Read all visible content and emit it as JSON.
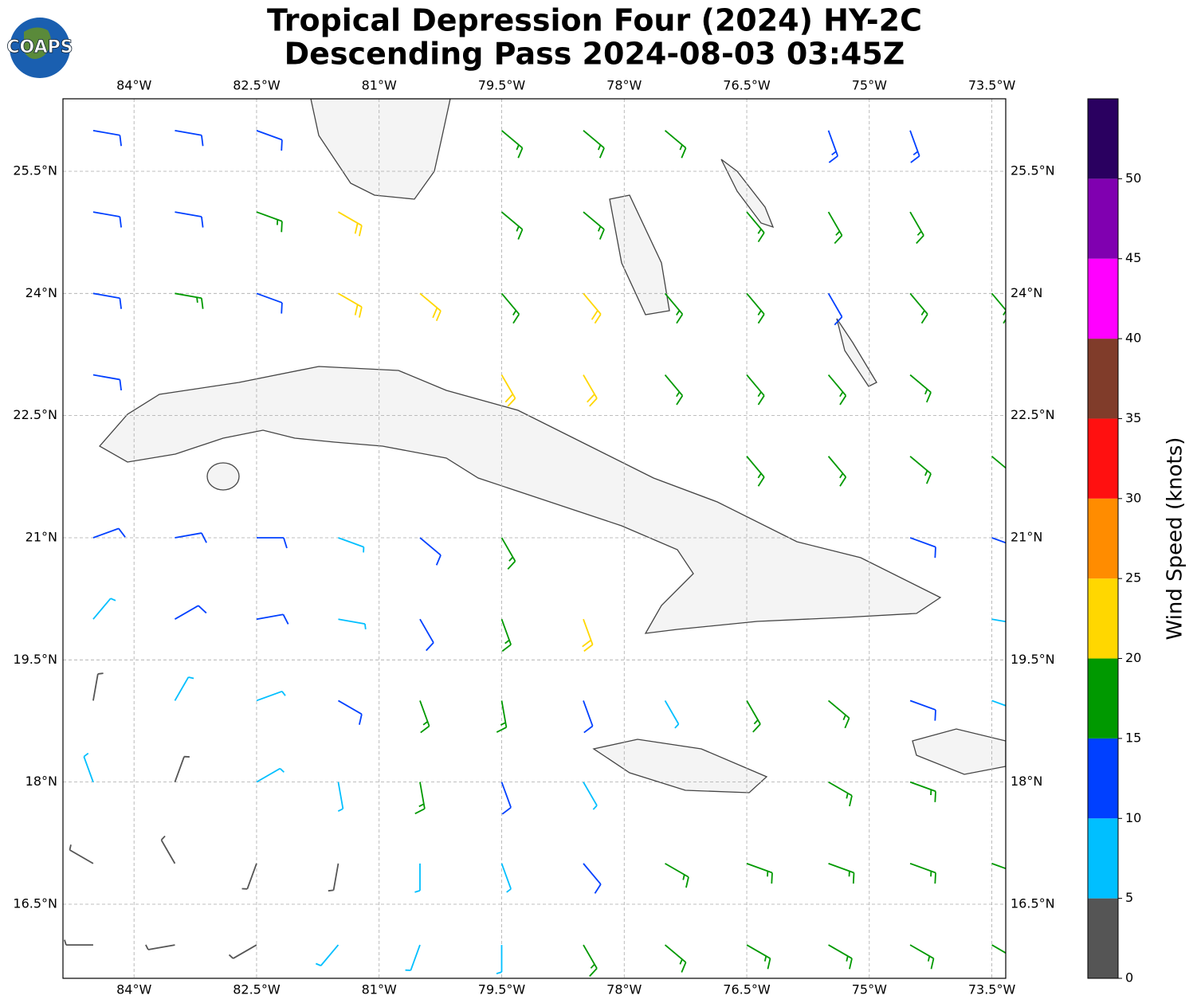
{
  "map": {
    "title": [
      "Tropical Depression Four (2024) HY-2C",
      "Descending Pass 2024-08-03 03:45Z"
    ],
    "logo": "COAPS",
    "xlim": [
      -84.87,
      -73.33
    ],
    "ylim": [
      15.59,
      26.39
    ],
    "xticks": [
      {
        "value": -84,
        "label": "84°W"
      },
      {
        "value": -82.5,
        "label": "82.5°W"
      },
      {
        "value": -81,
        "label": "81°W"
      },
      {
        "value": -79.5,
        "label": "79.5°W"
      },
      {
        "value": -78,
        "label": "78°W"
      },
      {
        "value": -76.5,
        "label": "76.5°W"
      },
      {
        "value": -75,
        "label": "75°W"
      },
      {
        "value": -73.5,
        "label": "73.5°W"
      }
    ],
    "yticks": [
      {
        "value": 16.5,
        "label": "16.5°N"
      },
      {
        "value": 18,
        "label": "18°N"
      },
      {
        "value": 19.5,
        "label": "19.5°N"
      },
      {
        "value": 21,
        "label": "21°N"
      },
      {
        "value": 22.5,
        "label": "22.5°N"
      },
      {
        "value": 24,
        "label": "24°N"
      },
      {
        "value": 25.5,
        "label": "25.5°N"
      }
    ],
    "grid": true,
    "winds": {
      "lons": [
        -84.5,
        -83.5,
        -82.5,
        -81.5,
        -80.5,
        -79.5,
        -78.5,
        -77.5,
        -76.5,
        -75.5,
        -74.5,
        -73.5
      ],
      "lats": [
        16,
        17,
        18,
        19,
        20,
        21,
        22,
        23,
        24,
        25,
        26
      ],
      "speed": [
        [
          3,
          3,
          4,
          7,
          7,
          7,
          17,
          17,
          17,
          17,
          17,
          17
        ],
        [
          3,
          3,
          4,
          3,
          7,
          7,
          12,
          17,
          17,
          17,
          17,
          17
        ],
        [
          7,
          4,
          7,
          7,
          17,
          12,
          7,
          null,
          null,
          17,
          17,
          null
        ],
        [
          4,
          7,
          7,
          12,
          17,
          17,
          12,
          7,
          17,
          17,
          12,
          7
        ],
        [
          7,
          12,
          12,
          7,
          12,
          17,
          22,
          null,
          null,
          null,
          null,
          8
        ],
        [
          12,
          12,
          12,
          7,
          12,
          17,
          null,
          null,
          null,
          null,
          12,
          12
        ],
        [
          null,
          null,
          null,
          null,
          null,
          null,
          null,
          null,
          17,
          17,
          17,
          17
        ],
        [
          12,
          null,
          null,
          null,
          null,
          22,
          22,
          17,
          17,
          17,
          17,
          null
        ],
        [
          12,
          17,
          12,
          22,
          22,
          17,
          22,
          17,
          17,
          12,
          17,
          17
        ],
        [
          12,
          12,
          16,
          22,
          null,
          17,
          17,
          null,
          17,
          17,
          17,
          null
        ],
        [
          12,
          12,
          12,
          null,
          null,
          17,
          17,
          17,
          null,
          13,
          13,
          null
        ]
      ],
      "dir": [
        [
          270,
          260,
          240,
          220,
          200,
          180,
          150,
          130,
          120,
          120,
          120,
          120
        ],
        [
          300,
          330,
          200,
          190,
          180,
          160,
          140,
          120,
          110,
          110,
          110,
          110
        ],
        [
          340,
          20,
          60,
          170,
          170,
          160,
          150,
          null,
          null,
          120,
          110,
          null
        ],
        [
          10,
          30,
          70,
          120,
          160,
          170,
          160,
          150,
          150,
          130,
          110,
          110
        ],
        [
          40,
          60,
          80,
          100,
          150,
          160,
          160,
          null,
          null,
          null,
          null,
          100
        ],
        [
          70,
          80,
          90,
          110,
          130,
          150,
          null,
          null,
          null,
          null,
          110,
          110
        ],
        [
          null,
          null,
          null,
          null,
          null,
          null,
          null,
          null,
          140,
          140,
          130,
          130
        ],
        [
          100,
          null,
          null,
          null,
          null,
          150,
          150,
          140,
          140,
          140,
          130,
          null
        ],
        [
          100,
          100,
          110,
          120,
          130,
          140,
          140,
          140,
          140,
          150,
          140,
          140
        ],
        [
          100,
          100,
          110,
          120,
          null,
          130,
          130,
          null,
          140,
          150,
          150,
          null
        ],
        [
          100,
          100,
          110,
          null,
          null,
          130,
          130,
          130,
          null,
          160,
          160,
          null
        ]
      ]
    },
    "colorbar": {
      "label": "Wind Speed (knots)",
      "lim": [
        0,
        55
      ],
      "ticks": [
        0,
        5,
        10,
        15,
        20,
        25,
        30,
        35,
        40,
        45,
        50
      ],
      "colors": [
        "#555555",
        "#00bfff",
        "#0040ff",
        "#009900",
        "#ffd700",
        "#ff8c00",
        "#ff1010",
        "#803c2a",
        "#ff00ff",
        "#8000b0",
        "#2a0060"
      ]
    }
  }
}
